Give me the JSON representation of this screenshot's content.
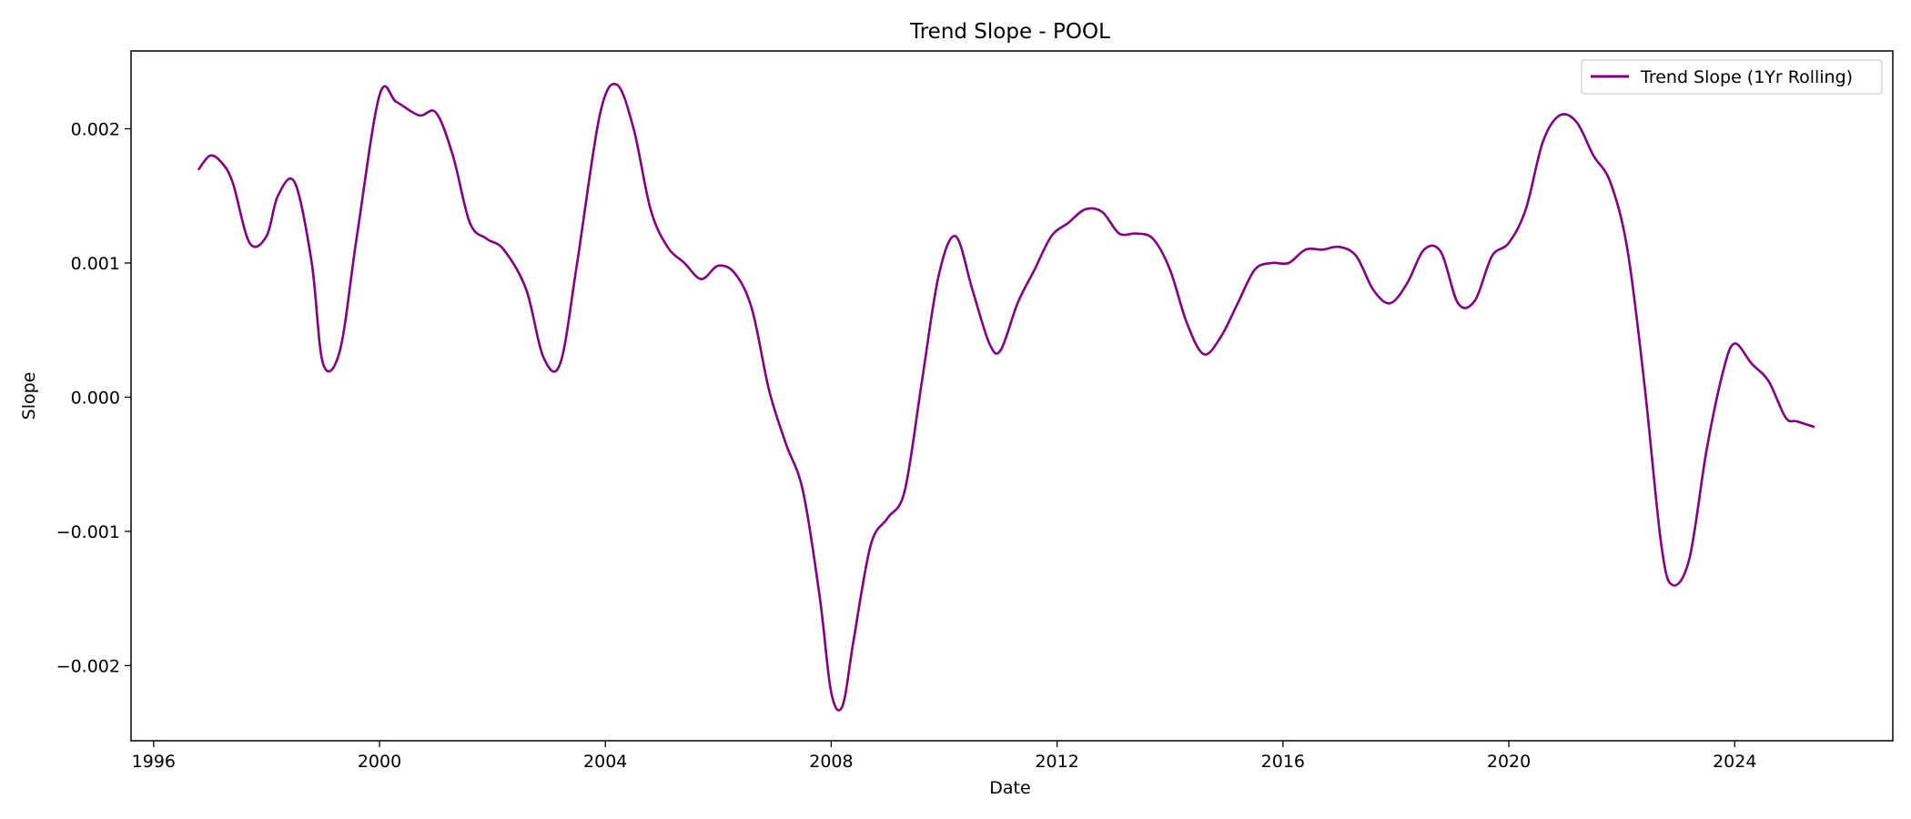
{
  "chart_data": {
    "type": "line",
    "title": "Trend Slope - POOL",
    "xlabel": "Date",
    "ylabel": "Slope",
    "xlim": [
      1995.6,
      2026.8
    ],
    "ylim": [
      -0.00256,
      0.00258
    ],
    "x_ticks": [
      1996,
      2000,
      2004,
      2008,
      2012,
      2016,
      2020,
      2024
    ],
    "x_tick_labels": [
      "1996",
      "2000",
      "2004",
      "2008",
      "2012",
      "2016",
      "2020",
      "2024"
    ],
    "y_ticks": [
      -0.002,
      -0.001,
      0.0,
      0.001,
      0.002
    ],
    "y_tick_labels": [
      "−0.002",
      "−0.001",
      "0.000",
      "0.001",
      "0.002"
    ],
    "grid": false,
    "legend_position": "top-right",
    "series": [
      {
        "name": "Trend Slope (1Yr Rolling)",
        "color": "#800080",
        "x": [
          1996.8,
          1997.0,
          1997.2,
          1997.4,
          1997.7,
          1998.0,
          1998.2,
          1998.5,
          1998.8,
          1999.0,
          1999.3,
          1999.6,
          2000.0,
          2000.3,
          2000.7,
          2001.0,
          2001.3,
          2001.6,
          2001.9,
          2002.2,
          2002.6,
          2002.9,
          2003.2,
          2003.5,
          2003.9,
          2004.2,
          2004.5,
          2004.8,
          2005.1,
          2005.4,
          2005.7,
          2006.0,
          2006.3,
          2006.6,
          2006.9,
          2007.2,
          2007.5,
          2007.8,
          2008.0,
          2008.2,
          2008.4,
          2008.7,
          2009.0,
          2009.3,
          2009.6,
          2009.9,
          2010.2,
          2010.5,
          2010.8,
          2011.0,
          2011.3,
          2011.6,
          2011.9,
          2012.2,
          2012.5,
          2012.8,
          2013.1,
          2013.4,
          2013.7,
          2014.0,
          2014.3,
          2014.6,
          2014.9,
          2015.2,
          2015.5,
          2015.8,
          2016.1,
          2016.4,
          2016.7,
          2017.0,
          2017.3,
          2017.6,
          2017.9,
          2018.2,
          2018.5,
          2018.8,
          2019.1,
          2019.4,
          2019.7,
          2020.0,
          2020.3,
          2020.6,
          2020.9,
          2021.2,
          2021.5,
          2021.8,
          2022.1,
          2022.4,
          2022.7,
          2022.9,
          2023.2,
          2023.5,
          2023.8,
          2024.0,
          2024.3,
          2024.6,
          2024.9,
          2025.1,
          2025.4
        ],
        "y": [
          0.0017,
          0.0018,
          0.00175,
          0.0016,
          0.00115,
          0.0012,
          0.0015,
          0.0016,
          0.001,
          0.00025,
          0.00035,
          0.0012,
          0.00225,
          0.0022,
          0.0021,
          0.00212,
          0.0018,
          0.0013,
          0.00118,
          0.0011,
          0.0008,
          0.0003,
          0.00025,
          0.001,
          0.0021,
          0.00233,
          0.002,
          0.0014,
          0.00112,
          0.001,
          0.00088,
          0.00098,
          0.00092,
          0.00065,
          5e-05,
          -0.00035,
          -0.0007,
          -0.0015,
          -0.0022,
          -0.0023,
          -0.0018,
          -0.0011,
          -0.0009,
          -0.0007,
          0.0001,
          0.0009,
          0.0012,
          0.0008,
          0.0004,
          0.00035,
          0.0007,
          0.00095,
          0.0012,
          0.0013,
          0.0014,
          0.00138,
          0.00122,
          0.00122,
          0.00118,
          0.00095,
          0.00055,
          0.00032,
          0.00045,
          0.0007,
          0.00095,
          0.001,
          0.001,
          0.0011,
          0.0011,
          0.00112,
          0.00105,
          0.0008,
          0.0007,
          0.00085,
          0.0011,
          0.00108,
          0.0007,
          0.00072,
          0.00105,
          0.00115,
          0.0014,
          0.0019,
          0.0021,
          0.00205,
          0.0018,
          0.0016,
          0.0011,
          0.0001,
          -0.0011,
          -0.0014,
          -0.0012,
          -0.0004,
          0.0002,
          0.0004,
          0.00025,
          0.00012,
          -0.00015,
          -0.00018,
          -0.00022
        ]
      }
    ]
  }
}
